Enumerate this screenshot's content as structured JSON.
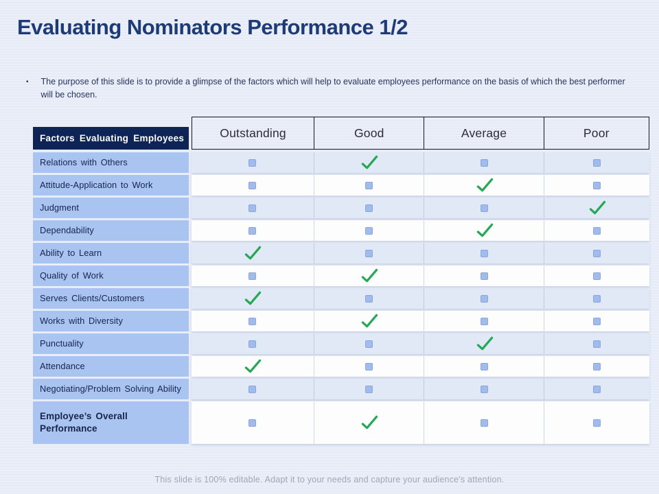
{
  "slide": {
    "title": "Evaluating Nominators Performance 1/2",
    "bullet_marker": "•",
    "bullet_text": "The purpose of this slide is to provide a glimpse of the factors which will help to evaluate employees performance on the basis of which the best performer will be chosen.",
    "footer": "This slide is 100% editable. Adapt it to your needs and capture your audience's attention."
  },
  "table": {
    "factor_header": "Factors Evaluating Employees",
    "rating_headers": [
      "Outstanding",
      "Good",
      "Average",
      "Poor"
    ],
    "rows": [
      {
        "label": "Relations with Others",
        "bold": false,
        "marks": [
          "square",
          "check",
          "square",
          "square"
        ]
      },
      {
        "label": "Attitude-Application to Work",
        "bold": false,
        "marks": [
          "square",
          "square",
          "check",
          "square"
        ]
      },
      {
        "label": "Judgment",
        "bold": false,
        "marks": [
          "square",
          "square",
          "square",
          "check"
        ]
      },
      {
        "label": "Dependability",
        "bold": false,
        "marks": [
          "square",
          "square",
          "check",
          "square"
        ]
      },
      {
        "label": "Ability to Learn",
        "bold": false,
        "marks": [
          "check",
          "square",
          "square",
          "square"
        ]
      },
      {
        "label": "Quality of Work",
        "bold": false,
        "marks": [
          "square",
          "check",
          "square",
          "square"
        ]
      },
      {
        "label": "Serves Clients/Customers",
        "bold": false,
        "marks": [
          "check",
          "square",
          "square",
          "square"
        ]
      },
      {
        "label": "Works with Diversity",
        "bold": false,
        "marks": [
          "square",
          "check",
          "square",
          "square"
        ]
      },
      {
        "label": "Punctuality",
        "bold": false,
        "marks": [
          "square",
          "square",
          "check",
          "square"
        ]
      },
      {
        "label": "Attendance",
        "bold": false,
        "marks": [
          "check",
          "square",
          "square",
          "square"
        ]
      },
      {
        "label": "Negotiating/Problem Solving Ability",
        "bold": false,
        "marks": [
          "square",
          "square",
          "square",
          "square"
        ]
      },
      {
        "label": "Employee’s Overall Performance",
        "bold": true,
        "marks": [
          "square",
          "check",
          "square",
          "square"
        ]
      }
    ]
  },
  "icons": {
    "check": "check-icon",
    "square": "square-marker-icon"
  },
  "colors": {
    "background": "#e9edf8",
    "title_navy": "#1d3b76",
    "header_navy": "#0e2356",
    "factor_cell_blue": "#a9c4f0",
    "row_light_blue": "#e1e9f7",
    "row_white": "#fdfdfe",
    "square_blue": "#a0bbec",
    "check_green": "#27a857",
    "footer_gray": "#a0a6b6"
  }
}
